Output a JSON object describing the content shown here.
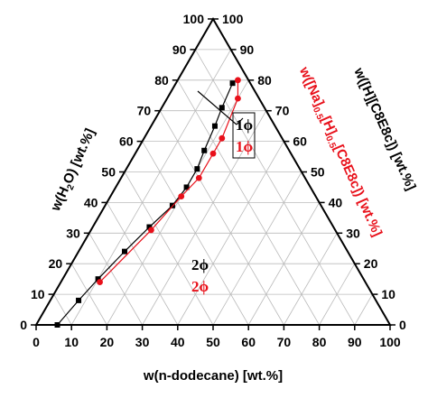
{
  "chart_data": {
    "type": "ternary",
    "axes": {
      "bottom": {
        "label": "w(n-dodecane) [wt.%]",
        "ticks": [
          "0",
          "10",
          "20",
          "30",
          "40",
          "50",
          "60",
          "70",
          "80",
          "90",
          "100"
        ]
      },
      "left": {
        "label_parts": [
          "w(H",
          "2",
          "O) [wt.%]"
        ],
        "ticks": [
          "100",
          "90",
          "80",
          "70",
          "60",
          "50",
          "40",
          "30",
          "20",
          "10",
          "0"
        ]
      },
      "right": {
        "label_black": "w([H][C8E8c]) [wt.%]",
        "label_red_parts": [
          "w([Na]",
          "0.5",
          "[H]",
          "0.5",
          "[C8E8c]) [wt.%]"
        ],
        "ticks": [
          "100",
          "90",
          "80",
          "70",
          "60",
          "50",
          "40",
          "30",
          "20",
          "10",
          "0"
        ]
      }
    },
    "grid": true,
    "grid_step": 10,
    "colors": {
      "black_series": "#000000",
      "red_series": "#e8101a",
      "grid": "#bbbbbb"
    },
    "series": [
      {
        "color": "#000000",
        "marker": "square",
        "points": [
          {
            "dodecane": 6,
            "water": 94,
            "surfactant": 0
          },
          {
            "dodecane": 8,
            "water": 84,
            "surfactant": 8
          },
          {
            "dodecane": 10,
            "water": 75,
            "surfactant": 15
          },
          {
            "dodecane": 13,
            "water": 63,
            "surfactant": 24
          },
          {
            "dodecane": 16,
            "water": 52,
            "surfactant": 32
          },
          {
            "dodecane": 19,
            "water": 42,
            "surfactant": 39
          },
          {
            "dodecane": 20,
            "water": 35,
            "surfactant": 45
          },
          {
            "dodecane": 20,
            "water": 29,
            "surfactant": 51
          },
          {
            "dodecane": 19,
            "water": 24,
            "surfactant": 57
          },
          {
            "dodecane": 18,
            "water": 17,
            "surfactant": 65
          },
          {
            "dodecane": 17,
            "water": 12,
            "surfactant": 71
          },
          {
            "dodecane": 16,
            "water": 5,
            "surfactant": 79
          }
        ]
      },
      {
        "color": "#e8101a",
        "marker": "circle",
        "points": [
          {
            "dodecane": 11,
            "water": 75,
            "surfactant": 14
          },
          {
            "dodecane": 17,
            "water": 52,
            "surfactant": 31
          },
          {
            "dodecane": 20,
            "water": 38,
            "surfactant": 42
          },
          {
            "dodecane": 22,
            "water": 30,
            "surfactant": 48
          },
          {
            "dodecane": 22,
            "water": 22,
            "surfactant": 56
          },
          {
            "dodecane": 22,
            "water": 17,
            "surfactant": 61
          },
          {
            "dodecane": 20,
            "water": 6,
            "surfactant": 74
          },
          {
            "dodecane": 17,
            "water": 3,
            "surfactant": 80
          }
        ]
      }
    ],
    "annotations": {
      "one_phase_black": {
        "num": "1",
        "phi": "ϕ",
        "color": "#000000"
      },
      "one_phase_red": {
        "num": "1",
        "phi": "ϕ",
        "color": "#e8101a"
      },
      "two_phase_black": {
        "num": "2",
        "phi": "ϕ",
        "color": "#000000"
      },
      "two_phase_red": {
        "num": "2",
        "phi": "ϕ",
        "color": "#e8101a"
      }
    }
  }
}
